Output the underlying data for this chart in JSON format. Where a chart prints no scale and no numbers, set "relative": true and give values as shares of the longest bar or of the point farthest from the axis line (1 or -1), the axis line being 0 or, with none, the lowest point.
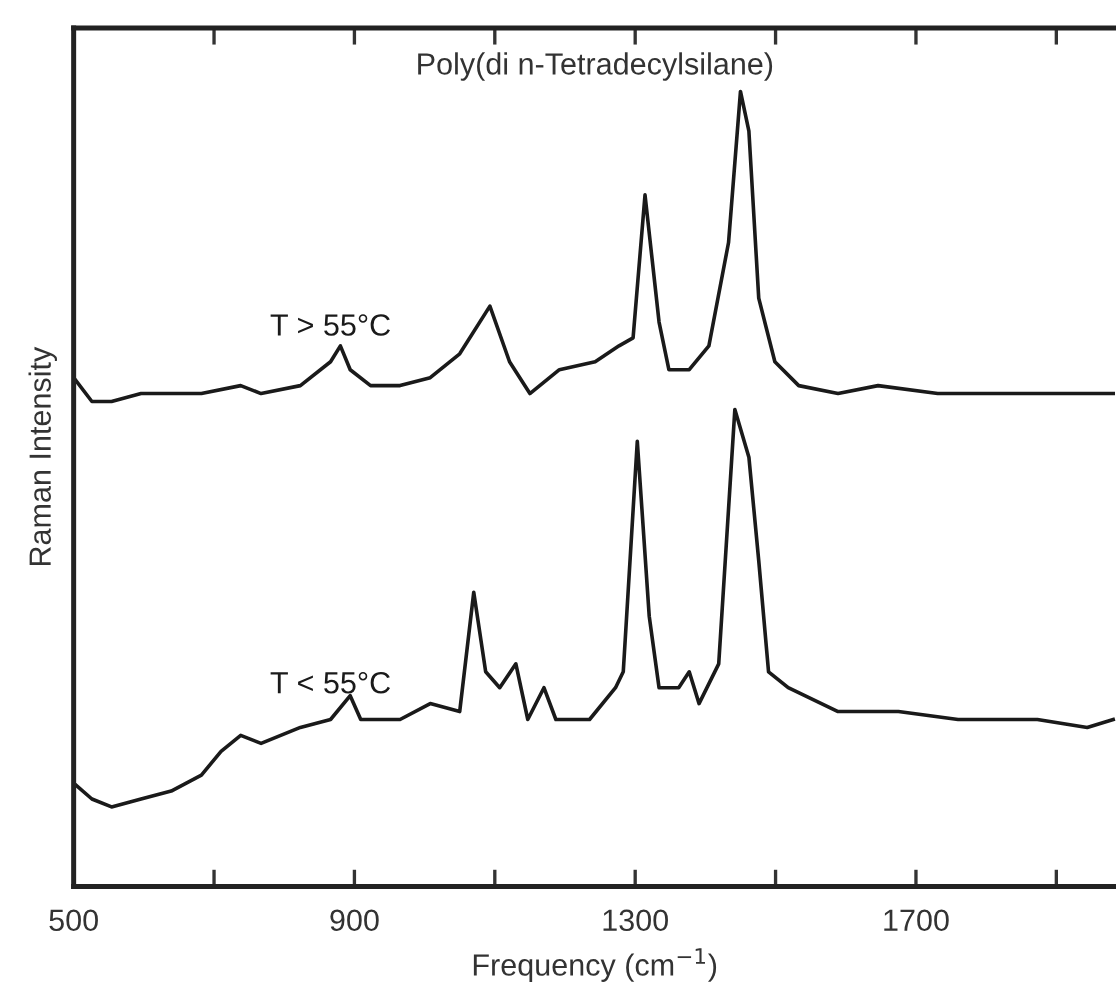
{
  "chart_data": {
    "type": "line",
    "title": "Poly(di n-Tetradecylsilane)",
    "xlabel": "Frequency (cm$^{−1}$)",
    "ylabel": "Raman Intensity",
    "relative": true,
    "xlim": [
      500,
      1985
    ],
    "xticks": [
      500,
      {
        "value": 700,
        "label": null
      },
      900,
      {
        "value": 1100,
        "label": null
      },
      1300,
      {
        "value": 1500,
        "label": null
      },
      1700,
      {
        "value": 1900,
        "label": null
      }
    ],
    "grid": false,
    "legend": false,
    "marker": "none",
    "line_style": "solid",
    "series": [
      {
        "name": "T > 55°C",
        "color": "#1a1a1a",
        "x": [
          500,
          526,
          554,
          596,
          639,
          682,
          738,
          767,
          823,
          866,
          880,
          894,
          923,
          965,
          1008,
          1050,
          1093,
          1121,
          1150,
          1192,
          1243,
          1277,
          1297,
          1314,
          1334,
          1348,
          1377,
          1405,
          1433,
          1450,
          1462,
          1476,
          1499,
          1533,
          1589,
          1646,
          1731,
          1845,
          1930,
          1981
        ],
        "values": [
          0.64,
          0.61,
          0.61,
          0.62,
          0.62,
          0.62,
          0.63,
          0.62,
          0.63,
          0.66,
          0.68,
          0.65,
          0.63,
          0.63,
          0.64,
          0.67,
          0.73,
          0.66,
          0.62,
          0.65,
          0.66,
          0.68,
          0.69,
          0.87,
          0.71,
          0.65,
          0.65,
          0.68,
          0.81,
          1.0,
          0.95,
          0.74,
          0.66,
          0.63,
          0.62,
          0.63,
          0.62,
          0.62,
          0.62,
          0.62
        ]
      },
      {
        "name": "T < 55°C",
        "color": "#1a1a1a",
        "x": [
          500,
          526,
          554,
          596,
          639,
          682,
          710,
          738,
          767,
          823,
          866,
          894,
          909,
          965,
          1008,
          1050,
          1070,
          1087,
          1107,
          1130,
          1147,
          1170,
          1187,
          1206,
          1235,
          1272,
          1283,
          1303,
          1320,
          1334,
          1362,
          1377,
          1391,
          1419,
          1442,
          1462,
          1476,
          1490,
          1518,
          1589,
          1675,
          1760,
          1873,
          1944,
          1981
        ],
        "values": [
          0.13,
          0.11,
          0.1,
          0.11,
          0.12,
          0.14,
          0.17,
          0.19,
          0.18,
          0.2,
          0.21,
          0.24,
          0.21,
          0.21,
          0.23,
          0.22,
          0.37,
          0.27,
          0.25,
          0.28,
          0.21,
          0.25,
          0.21,
          0.21,
          0.21,
          0.25,
          0.27,
          0.56,
          0.34,
          0.25,
          0.25,
          0.27,
          0.23,
          0.28,
          0.6,
          0.54,
          0.41,
          0.27,
          0.25,
          0.22,
          0.22,
          0.21,
          0.21,
          0.2,
          0.21
        ]
      }
    ]
  }
}
